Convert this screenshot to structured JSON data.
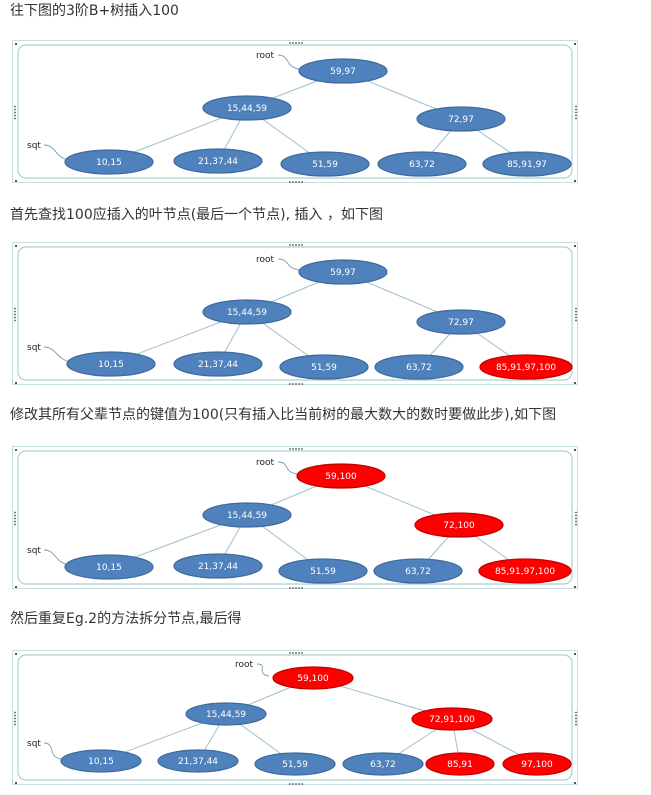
{
  "captions": [
    "往下图的3阶B+树插入100",
    "首先查找100应插入的叶节点(最后一个节点), 插入 ，如下图",
    "修改其所有父辈节点的键值为100(只有插入比当前树的最大数大的数时要做此步),如下图",
    "然后重复Eg.2的方法拆分节点,最后得"
  ],
  "colors": {
    "blue": "#4f81bd",
    "red": "#ff0000",
    "edge": "#9fc0cf",
    "frame": "#a9d1d4"
  },
  "diagrams": [
    {
      "labels": {
        "root": "root",
        "sqt": "sqt"
      },
      "nodes": [
        {
          "id": "root",
          "text": "59,97",
          "highlight": false
        },
        {
          "id": "l1a",
          "text": "15,44,59",
          "highlight": false
        },
        {
          "id": "l1b",
          "text": "72,97",
          "highlight": false
        },
        {
          "id": "leaf1",
          "text": "10,15",
          "highlight": false
        },
        {
          "id": "leaf2",
          "text": "21,37,44",
          "highlight": false
        },
        {
          "id": "leaf3",
          "text": "51,59",
          "highlight": false
        },
        {
          "id": "leaf4",
          "text": "63,72",
          "highlight": false
        },
        {
          "id": "leaf5",
          "text": "85,91,97",
          "highlight": false
        }
      ]
    },
    {
      "labels": {
        "root": "root",
        "sqt": "sqt"
      },
      "nodes": [
        {
          "id": "root",
          "text": "59,97",
          "highlight": false
        },
        {
          "id": "l1a",
          "text": "15,44,59",
          "highlight": false
        },
        {
          "id": "l1b",
          "text": "72,97",
          "highlight": false
        },
        {
          "id": "leaf1",
          "text": "10,15",
          "highlight": false
        },
        {
          "id": "leaf2",
          "text": "21,37,44",
          "highlight": false
        },
        {
          "id": "leaf3",
          "text": "51,59",
          "highlight": false
        },
        {
          "id": "leaf4",
          "text": "63,72",
          "highlight": false
        },
        {
          "id": "leaf5",
          "text": "85,91,97,100",
          "highlight": true
        }
      ]
    },
    {
      "labels": {
        "root": "root",
        "sqt": "sqt"
      },
      "nodes": [
        {
          "id": "root",
          "text": "59,100",
          "highlight": true
        },
        {
          "id": "l1a",
          "text": "15,44,59",
          "highlight": false
        },
        {
          "id": "l1b",
          "text": "72,100",
          "highlight": true
        },
        {
          "id": "leaf1",
          "text": "10,15",
          "highlight": false
        },
        {
          "id": "leaf2",
          "text": "21,37,44",
          "highlight": false
        },
        {
          "id": "leaf3",
          "text": "51,59",
          "highlight": false
        },
        {
          "id": "leaf4",
          "text": "63,72",
          "highlight": false
        },
        {
          "id": "leaf5",
          "text": "85,91,97,100",
          "highlight": true
        }
      ]
    },
    {
      "labels": {
        "root": "root",
        "sqt": "sqt"
      },
      "nodes": [
        {
          "id": "root",
          "text": "59,100",
          "highlight": true
        },
        {
          "id": "l1a",
          "text": "15,44,59",
          "highlight": false
        },
        {
          "id": "l1b",
          "text": "72,91,100",
          "highlight": true
        },
        {
          "id": "leaf1",
          "text": "10,15",
          "highlight": false
        },
        {
          "id": "leaf2",
          "text": "21,37,44",
          "highlight": false
        },
        {
          "id": "leaf3",
          "text": "51,59",
          "highlight": false
        },
        {
          "id": "leaf4",
          "text": "63,72",
          "highlight": false
        },
        {
          "id": "leaf5",
          "text": "85,91",
          "highlight": true
        },
        {
          "id": "leaf6",
          "text": "97,100",
          "highlight": true
        }
      ]
    }
  ]
}
